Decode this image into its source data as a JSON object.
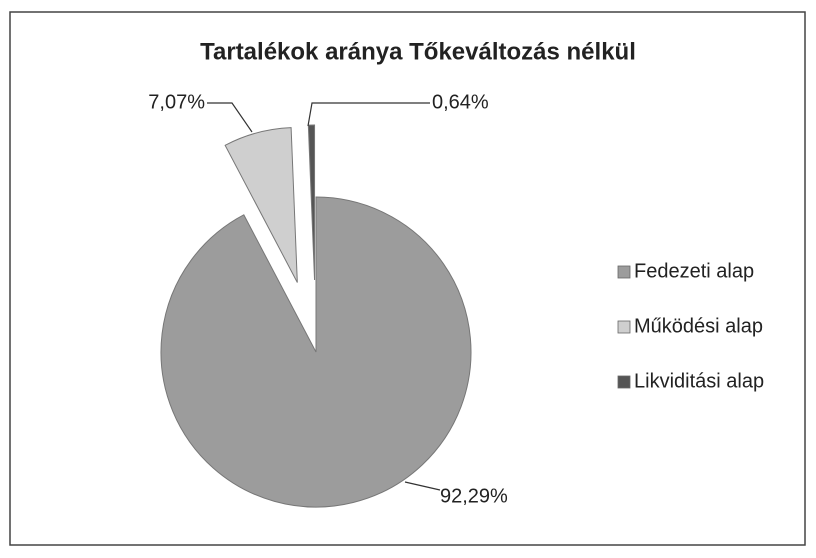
{
  "chart_data": {
    "type": "pie",
    "title": "Tartalékok aránya Tőkeváltozás nélkül",
    "categories": [
      "Fedezeti alap",
      "Működési alap",
      "Likviditási alap"
    ],
    "values": [
      92.29,
      7.07,
      0.64
    ],
    "value_labels": [
      "92,29%",
      "7,07%",
      "0,64%"
    ],
    "colors": [
      "#9c9c9c",
      "#cfcfcf",
      "#555555"
    ],
    "exploded": [
      false,
      true,
      true
    ],
    "legend": "right"
  }
}
